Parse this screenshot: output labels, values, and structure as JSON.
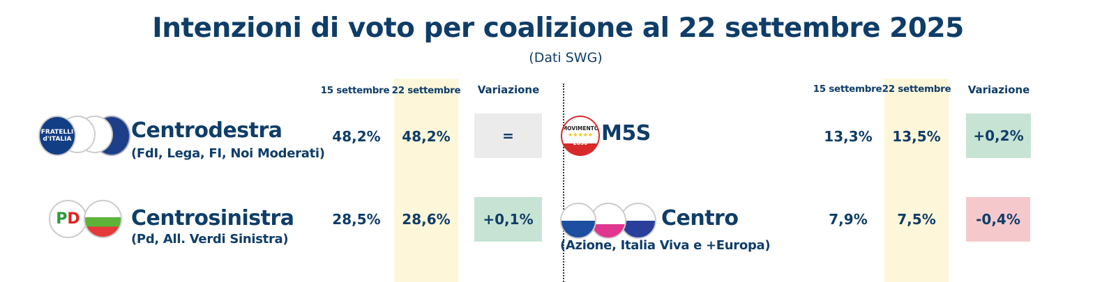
{
  "title": "Intenzioni di voto per coalizione al 22 settembre 2025",
  "subtitle": "(Dati SWG)",
  "headers": {
    "prev": "15 settembre",
    "curr": "22 settembre",
    "change": "Variazione"
  },
  "colors": {
    "text": "#0f3d68",
    "highlight": "#fdf6d9",
    "neutral": "#ebebeb",
    "positive": "#c7e3d3",
    "negative": "#f5c9cc"
  },
  "left": [
    {
      "name": "Centrodestra",
      "parties": "(FdI, Lega, FI, Noi Moderati)",
      "prev": "48,2%",
      "curr": "48,2%",
      "change": "=",
      "trend": "neutral",
      "logos": [
        "FRATELLI d'ITALIA",
        "LEGA",
        "FORZA ITALIA",
        "NOI MODERATI"
      ]
    },
    {
      "name": "Centrosinistra",
      "parties": "(Pd, All. Verdi Sinistra)",
      "prev": "28,5%",
      "curr": "28,6%",
      "change": "+0,1%",
      "trend": "positive",
      "logos": [
        "PD",
        "Alleanza Verdi Sinistra"
      ]
    }
  ],
  "right": [
    {
      "name": "M5S",
      "parties": "",
      "prev": "13,3%",
      "curr": "13,5%",
      "change": "+0,2%",
      "trend": "positive",
      "logos": [
        "MOVIMENTO 2050"
      ]
    },
    {
      "name": "Centro",
      "parties": "(Azione, Italia Viva e +Europa)",
      "prev": "7,9%",
      "curr": "7,5%",
      "change": "-0,4%",
      "trend": "negative",
      "logos": [
        "AZIONE",
        "ITALIA VIVA",
        "+EUROPA"
      ]
    }
  ]
}
